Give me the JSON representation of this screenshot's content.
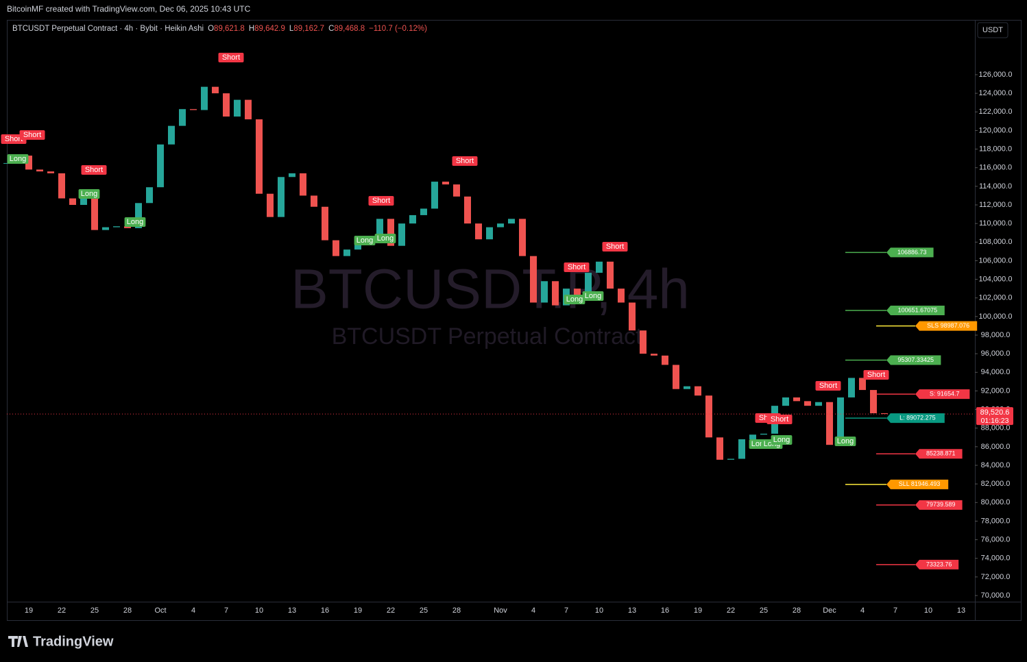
{
  "chart_data": {
    "type": "candlestick",
    "footer": "BitcoinMF created with TradingView.com, Dec 06, 2025 10:43 UTC",
    "brand": "TradingView",
    "title": "BTCUSDT Perpetual Contract · 4h · Bybit · Heikin Ashi",
    "ohlc": [
      {
        "name": "O",
        "text": "89,621.8"
      },
      {
        "name": "H",
        "text": "89,642.9"
      },
      {
        "name": "L",
        "text": "89,162.7"
      },
      {
        "name": "C",
        "text": "89,468.8"
      }
    ],
    "change": "−110.7 (−0.12%)",
    "watermark": "BTCUSDT.P, 4h",
    "watermark_subtitle": "BTCUSDT Perpetual Contract",
    "currency": "USDT",
    "up_color": "#26a69a",
    "down_color": "#ef5350",
    "categories": [
      null,
      null,
      "19",
      null,
      null,
      "22",
      null,
      null,
      "25",
      null,
      null,
      "28",
      null,
      null,
      "Oct",
      null,
      null,
      "4",
      null,
      null,
      "7",
      null,
      null,
      "10",
      null,
      null,
      "13",
      null,
      null,
      "16",
      null,
      null,
      "19",
      null,
      null,
      "22",
      null,
      null,
      "25",
      null,
      null,
      "28",
      null,
      null,
      null,
      "Nov",
      null,
      null,
      "4",
      null,
      null,
      "7",
      null,
      null,
      "10",
      null,
      null,
      "13",
      null,
      null,
      "16",
      null,
      null,
      "19",
      null,
      null,
      "22",
      null,
      null,
      "25",
      null,
      null,
      "28",
      null,
      null,
      "Dec",
      null,
      null,
      "4",
      null,
      null,
      "7",
      null,
      null,
      "10",
      null,
      null,
      "13",
      null
    ],
    "series": [
      {
        "name": "BTCUSDT",
        "values": [
          116500,
          117300,
          115800,
          115600,
          115400,
          112700,
          112000,
          113200,
          109300,
          109600,
          109700,
          109500,
          112200,
          113900,
          118500,
          120500,
          122300,
          122200,
          124700,
          124000,
          121500,
          123300,
          121200,
          113200,
          110700,
          115000,
          115400,
          113000,
          111800,
          108200,
          106500,
          107200,
          108500,
          108000,
          110500,
          107600,
          110000,
          110900,
          111600,
          114500,
          114200,
          112900,
          110000,
          108300,
          109600,
          110000,
          110500,
          106500,
          101500,
          103800,
          101200,
          103000,
          102300,
          104700,
          105900,
          103000,
          101500,
          98500,
          96000,
          95800,
          94800,
          92200,
          92500,
          91500,
          87000,
          84600,
          84700,
          86800,
          87300,
          87400,
          90400,
          91300,
          90900,
          90400,
          90800,
          86200,
          91300,
          93400,
          92100,
          89600,
          89520,
          null,
          null,
          null,
          null,
          null,
          null,
          null,
          null
        ]
      }
    ],
    "ylim": [
      69337,
      131821
    ],
    "yticks": [
      {
        "value": 70000,
        "label": "70,000.0"
      },
      {
        "value": 72000,
        "label": "72,000.0"
      },
      {
        "value": 74000,
        "label": "74,000.0"
      },
      {
        "value": 76000,
        "label": "76,000.0"
      },
      {
        "value": 78000,
        "label": "78,000.0"
      },
      {
        "value": 80000,
        "label": "80,000.0"
      },
      {
        "value": 82000,
        "label": "82,000.0"
      },
      {
        "value": 84000,
        "label": "84,000.0"
      },
      {
        "value": 86000,
        "label": "86,000.0"
      },
      {
        "value": 88000,
        "label": "88,000.0"
      },
      {
        "value": 90000,
        "label": "90,000.0"
      },
      {
        "value": 92000,
        "label": "92,000.0"
      },
      {
        "value": 94000,
        "label": "94,000.0"
      },
      {
        "value": 96000,
        "label": "96,000.0"
      },
      {
        "value": 98000,
        "label": "98,000.0"
      },
      {
        "value": 100000,
        "label": "100,000.0"
      },
      {
        "value": 102000,
        "label": "102,000.0"
      },
      {
        "value": 104000,
        "label": "104,000.0"
      },
      {
        "value": 106000,
        "label": "106,000.0"
      },
      {
        "value": 108000,
        "label": "108,000.0"
      },
      {
        "value": 110000,
        "label": "110,000.0"
      },
      {
        "value": 112000,
        "label": "112,000.0"
      },
      {
        "value": 114000,
        "label": "114,000.0"
      },
      {
        "value": 116000,
        "label": "116,000.0"
      },
      {
        "value": 118000,
        "label": "118,000.0"
      },
      {
        "value": 120000,
        "label": "120,000.0"
      },
      {
        "value": 122000,
        "label": "122,000.0"
      },
      {
        "value": 124000,
        "label": "124,000.0"
      },
      {
        "value": 126000,
        "label": "126,000.0"
      }
    ],
    "last_price": {
      "value": 89520.6,
      "label": "89,520.6",
      "countdown": "01:16:23",
      "color": "#f23645"
    },
    "levels": [
      {
        "value": 106886.73,
        "label": "106886.73",
        "color": "#4caf50"
      },
      {
        "value": 100651.67075,
        "label": "100651.67075",
        "color": "#4caf50"
      },
      {
        "value": 98987.076,
        "label": "SLS 98987.076",
        "color": "#ffeb3b",
        "box": "#ff9800"
      },
      {
        "value": 95307.33425,
        "label": "95307.33425",
        "color": "#4caf50"
      },
      {
        "value": 91654.7,
        "label": "S:  91654.7",
        "color": "#f23645"
      },
      {
        "value": 89072.275,
        "label": "L: 89072.275",
        "color": "#089981"
      },
      {
        "value": 85238.871,
        "label": "85238.871",
        "color": "#f23645"
      },
      {
        "value": 81946.493,
        "label": "SLL 81946.493",
        "color": "#ffeb3b",
        "box": "#ff9800"
      },
      {
        "value": 79739.589,
        "label": "79739.589",
        "color": "#f23645"
      },
      {
        "value": 73323.76,
        "label": "73323.76",
        "color": "#f23645"
      }
    ],
    "signal_colors": {
      "Short": "#f23645",
      "Long": "#4caf50"
    },
    "signals": [
      "Short",
      "Short",
      "Long",
      "Short",
      "Long",
      "Long",
      "Short",
      "Short",
      "Long",
      "Long",
      "Short",
      "Short",
      "Long",
      "Long",
      "Short",
      "Short",
      "Short",
      "Short",
      "Short",
      "Long",
      "Long",
      "Long",
      "Long"
    ]
  }
}
